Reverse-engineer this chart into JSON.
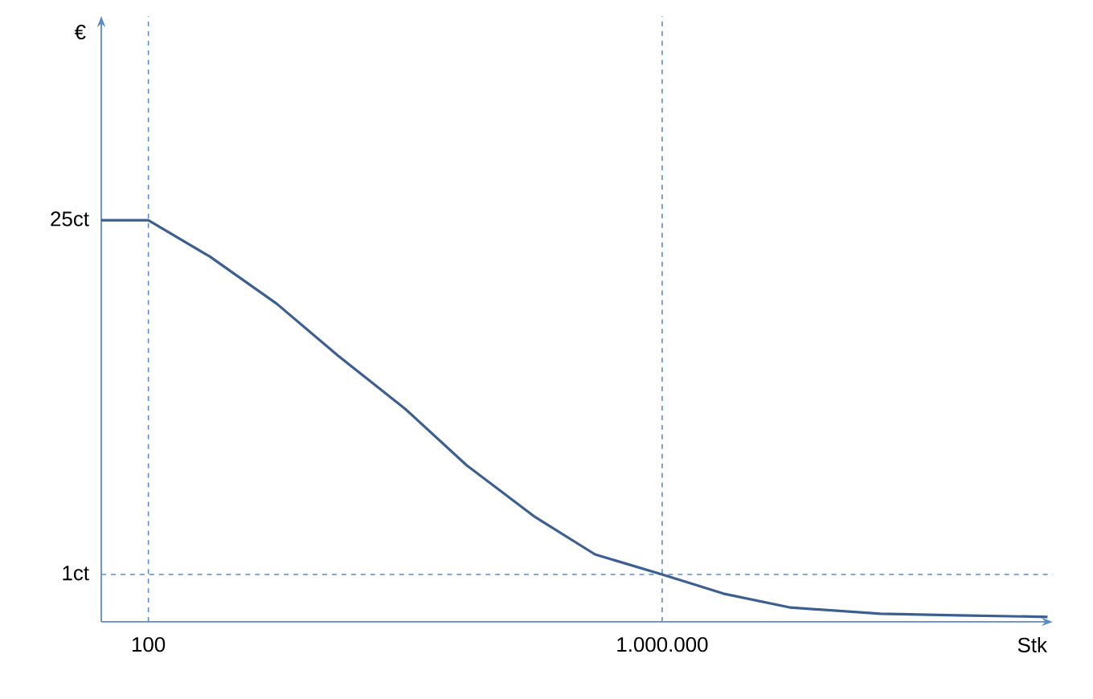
{
  "chart_data": {
    "type": "line",
    "xlabel": "Stk",
    "ylabel": "€",
    "log": "xy",
    "x": [
      43,
      100,
      300,
      1000,
      3000,
      10000,
      30000,
      100000,
      300000,
      1000000,
      3000000,
      10000000,
      50000000,
      200000000,
      1000000000
    ],
    "series": [
      {
        "color": "#3c5f91",
        "values": [
          25,
          25,
          18,
          11.7,
          7.3,
          4.5,
          2.7,
          1.7,
          1.2,
          1,
          0.84,
          0.74,
          0.7,
          0.69,
          0.68
        ]
      }
    ],
    "xlim": [
      43,
      1100000000
    ],
    "ylim": [
      0.65,
      160
    ],
    "xticks": [
      {
        "value": 100,
        "label": "100"
      },
      {
        "value": 1000000,
        "label": "1.000.000"
      }
    ],
    "yticks": [
      {
        "value": 25,
        "label": "25ct"
      },
      {
        "value": 1,
        "label": "1ct"
      }
    ],
    "ref_lines": [
      {
        "axis": "x",
        "value": 100,
        "color": "#5b8ac9",
        "line_style": "dashed"
      },
      {
        "axis": "x",
        "value": 1000000,
        "color": "#5b8ac9",
        "line_style": "dashed"
      },
      {
        "axis": "y",
        "value": 1,
        "color": "#5b8ac9",
        "line_style": "dashed"
      }
    ],
    "marker": "none",
    "line_style": "solid"
  }
}
